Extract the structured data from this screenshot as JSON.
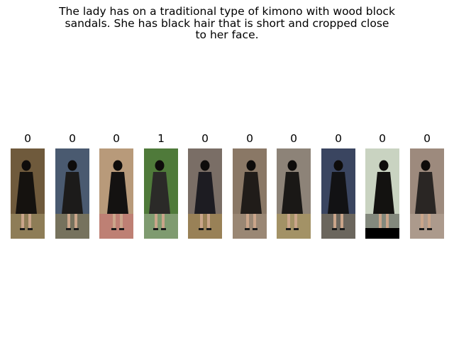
{
  "caption": {
    "line1": "The lady has on a traditional type of kimono with wood block",
    "line2": "sandals. She has black hair that is short and cropped close",
    "line3": "to her face."
  },
  "gallery": [
    {
      "label": "0",
      "bg": "#6f5a3c",
      "figure": "#15120f",
      "accent": "#c9c08a"
    },
    {
      "label": "0",
      "bg": "#4a5a70",
      "figure": "#1c1b1a",
      "accent": "#c9a13a"
    },
    {
      "label": "0",
      "bg": "#b89a7a",
      "figure": "#141211",
      "accent": "#c8506a"
    },
    {
      "label": "1",
      "bg": "#4f7a3a",
      "figure": "#2b2a28",
      "accent": "#d9d9d6"
    },
    {
      "label": "0",
      "bg": "#7a6e66",
      "figure": "#1d1c22",
      "accent": "#d4a63b"
    },
    {
      "label": "0",
      "bg": "#8a7866",
      "figure": "#201c19",
      "accent": "#b6a28e"
    },
    {
      "label": "0",
      "bg": "#8d8378",
      "figure": "#1a1816",
      "accent": "#cfb045"
    },
    {
      "label": "0",
      "bg": "#3a4560",
      "figure": "#121214",
      "accent": "#c9a35a"
    },
    {
      "label": "0",
      "bg": "#c9d3c1",
      "figure": "#131210",
      "accent": "#000000"
    },
    {
      "label": "0",
      "bg": "#9d8a7d",
      "figure": "#2a2624",
      "accent": "#c8b8a8"
    }
  ]
}
